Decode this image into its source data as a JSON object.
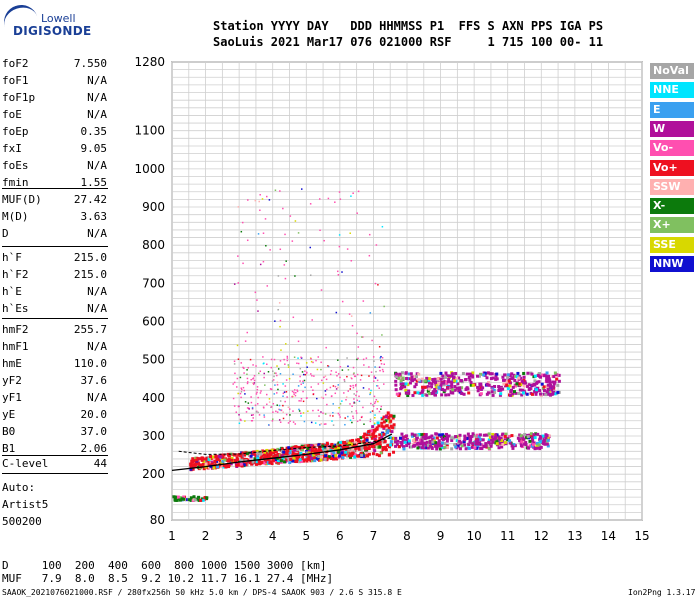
{
  "logo": {
    "line1": "Lowell",
    "line2": "DIGISONDE"
  },
  "header": {
    "row1": "Station YYYY DAY   DDD HHMMSS P1  FFS S AXN PPS IGA PS",
    "row2": "SaoLuis 2021 Mar17 076 021000 RSF     1 715 100 00- 11"
  },
  "params": {
    "group1": [
      {
        "name": "foF2",
        "value": "7.550"
      },
      {
        "name": "foF1",
        "value": "N/A"
      },
      {
        "name": "foF1p",
        "value": "N/A"
      },
      {
        "name": "foE",
        "value": "N/A"
      },
      {
        "name": "foEp",
        "value": "0.35"
      },
      {
        "name": "fxI",
        "value": "9.05"
      },
      {
        "name": "foEs",
        "value": "N/A"
      },
      {
        "name": "fmin",
        "value": "1.55"
      }
    ],
    "group2": [
      {
        "name": "MUF(D)",
        "value": "27.42"
      },
      {
        "name": "M(D)",
        "value": "3.63"
      },
      {
        "name": "D",
        "value": "N/A"
      }
    ],
    "group3": [
      {
        "name": "h`F",
        "value": "215.0"
      },
      {
        "name": "h`F2",
        "value": "215.0"
      },
      {
        "name": "h`E",
        "value": "N/A"
      },
      {
        "name": "h`Es",
        "value": "N/A"
      }
    ],
    "group4": [
      {
        "name": "hmF2",
        "value": "255.7"
      },
      {
        "name": "hmF1",
        "value": "N/A"
      },
      {
        "name": "hmE",
        "value": "110.0"
      },
      {
        "name": "yF2",
        "value": "37.6"
      },
      {
        "name": "yF1",
        "value": "N/A"
      },
      {
        "name": "yE",
        "value": "20.0"
      },
      {
        "name": "B0",
        "value": "37.0"
      },
      {
        "name": "B1",
        "value": "2.06"
      }
    ],
    "clevel": {
      "name": "C-level",
      "value": "44"
    }
  },
  "auto": [
    "Auto:",
    "Artist5",
    "500200"
  ],
  "legend": [
    {
      "label": "NoVal",
      "bg": "#a6a6a6",
      "fg": "#ffffff"
    },
    {
      "label": "NNE",
      "bg": "#00e5ff",
      "fg": "#ffffff"
    },
    {
      "label": "E",
      "bg": "#3aa0f0",
      "fg": "#ffffff"
    },
    {
      "label": "W",
      "bg": "#b0109a",
      "fg": "#ffffff"
    },
    {
      "label": "Vo-",
      "bg": "#ff4fb0",
      "fg": "#ffffff"
    },
    {
      "label": "Vo+",
      "bg": "#ee1020",
      "fg": "#ffffff"
    },
    {
      "label": "SSW",
      "bg": "#ffb0b0",
      "fg": "#ffffff"
    },
    {
      "label": "X-",
      "bg": "#0c7a0c",
      "fg": "#ffffff"
    },
    {
      "label": "X+",
      "bg": "#80c060",
      "fg": "#ffffff"
    },
    {
      "label": "SSE",
      "bg": "#d8d800",
      "fg": "#ffffff"
    },
    {
      "label": "NNW",
      "bg": "#1010d0",
      "fg": "#ffffff"
    }
  ],
  "bottom": {
    "row1": "D     100  200  400  600  800 1000 1500 3000 [km]",
    "row2": "MUF   7.9  8.0  8.5  9.2 10.2 11.7 16.1 27.4 [MHz]"
  },
  "footer": {
    "left": "SAAOK_2021076021000.RSF / 280fx256h 50 kHz 5.0 km / DPS-4 SAAOK 903 / 2.6 S 315.8 E",
    "right": "Ion2Png 1.3.17"
  },
  "chart_data": {
    "type": "scatter",
    "xlim": [
      1,
      15
    ],
    "ylim": [
      80,
      1280
    ],
    "x_ticks": [
      1,
      2,
      3,
      4,
      5,
      6,
      7,
      8,
      9,
      10,
      11,
      12,
      13,
      14,
      15
    ],
    "y_ticks": [
      80,
      200,
      300,
      400,
      500,
      600,
      700,
      800,
      900,
      1000,
      1100,
      1280
    ],
    "grid": true,
    "legend_placement": "right",
    "profile_line": {
      "x": [
        1.0,
        2.0,
        3.0,
        4.0,
        5.0,
        6.0,
        7.0,
        7.55
      ],
      "y": [
        210,
        220,
        232,
        242,
        252,
        264,
        280,
        305
      ]
    },
    "trace_line": {
      "x": [
        1.2,
        2.0,
        3.0,
        4.0,
        5.0,
        6.0,
        7.0,
        7.5
      ],
      "y": [
        260,
        252,
        253,
        262,
        270,
        274,
        285,
        295
      ]
    },
    "echo_bands": [
      {
        "name": "F2 O-trace",
        "x_range": [
          1.5,
          7.6
        ],
        "y_range": [
          215,
          300
        ],
        "color": "#ee1020"
      },
      {
        "name": "F2 X-trace",
        "x_range": [
          7.6,
          12.2
        ],
        "y_range": [
          270,
          310
        ],
        "color": "#b0109a"
      },
      {
        "name": "multi-hop 2F",
        "x_range": [
          7.6,
          12.5
        ],
        "y_range": [
          410,
          470
        ],
        "color": "#b0109a"
      },
      {
        "name": "spread F",
        "x_range": [
          2.8,
          7.3
        ],
        "y_range": [
          330,
          950
        ],
        "color": "#ff4fb0"
      },
      {
        "name": "low echoes",
        "x_range": [
          1.0,
          2.0
        ],
        "y_range": [
          135,
          145
        ],
        "color": "#0c7a0c"
      }
    ]
  }
}
